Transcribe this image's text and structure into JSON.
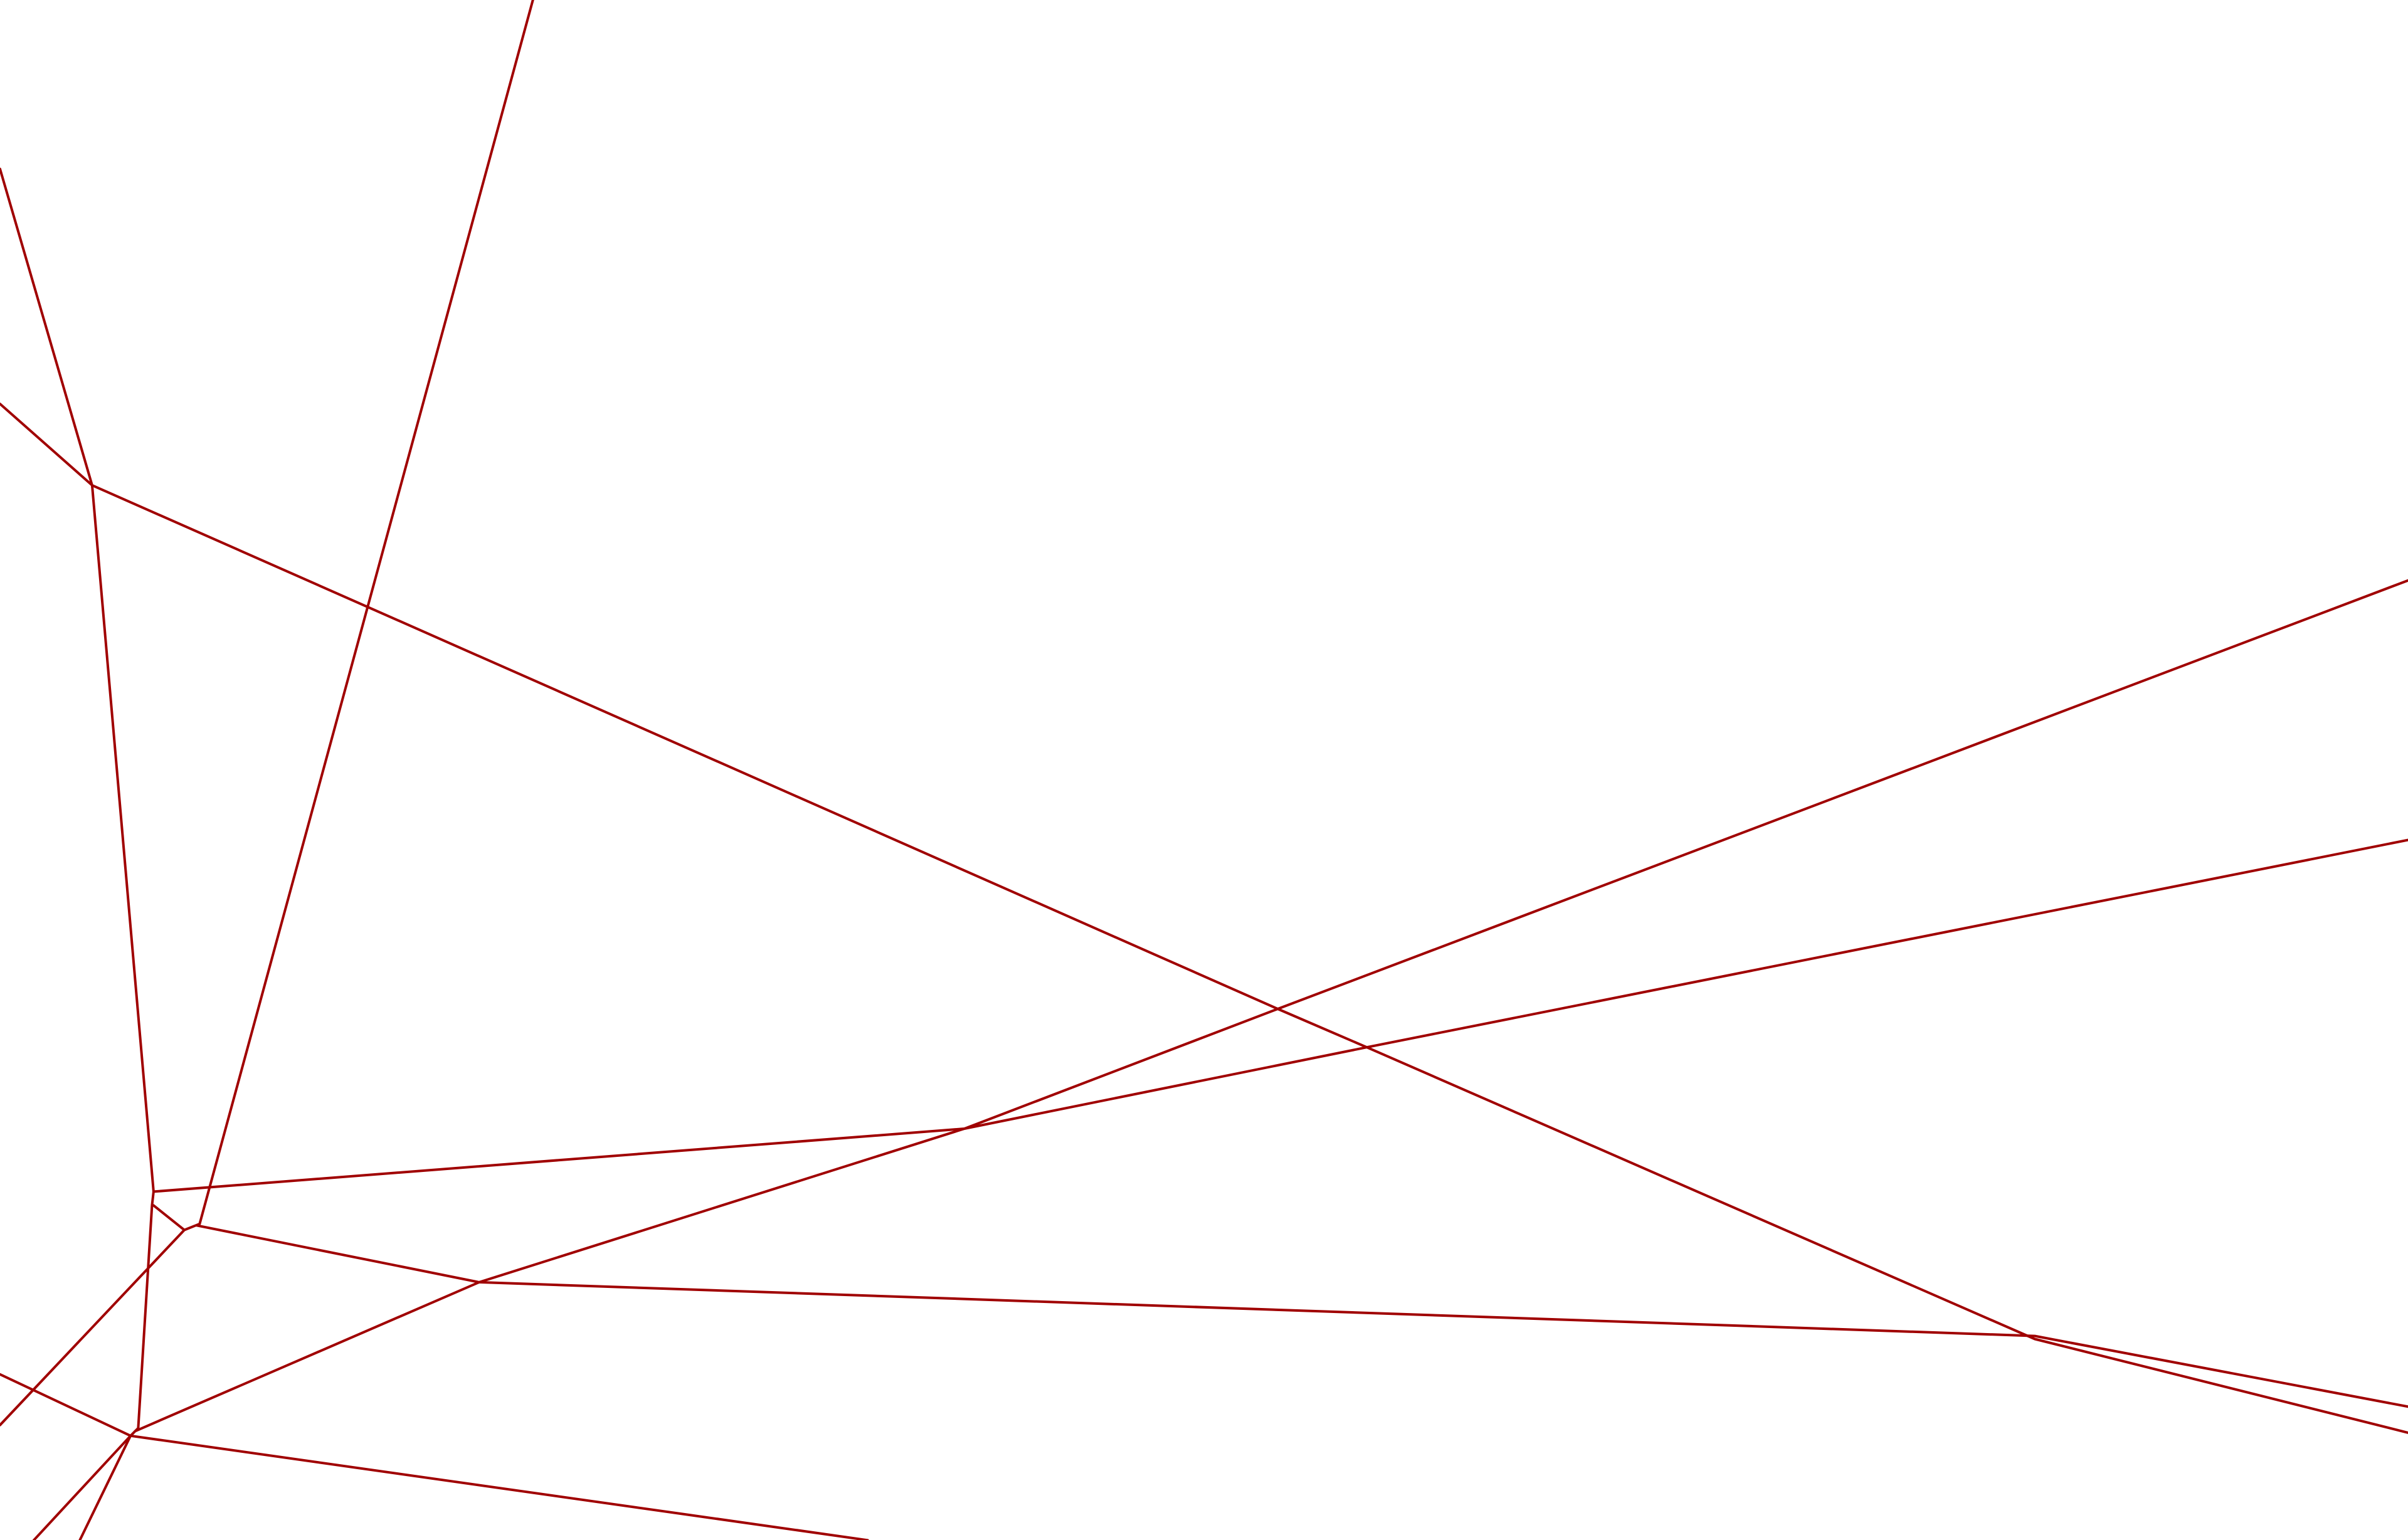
{
  "map": {
    "background": "#ffffff",
    "road_color": "#a00000",
    "feature_type": "road-network-lines"
  }
}
